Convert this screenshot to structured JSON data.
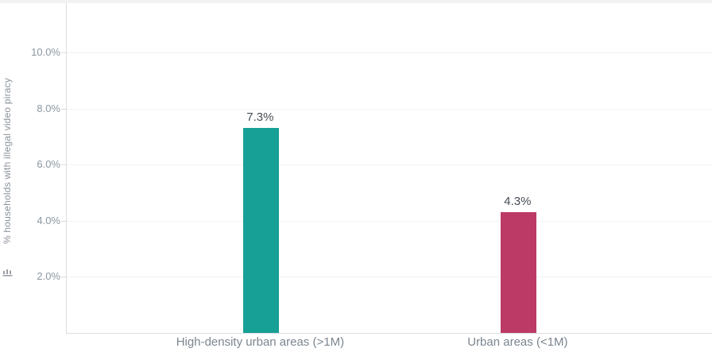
{
  "chart_data": {
    "type": "bar",
    "title": "",
    "categories": [
      "High-density urban areas (>1M)",
      "Urban areas (<1M)"
    ],
    "values": [
      7.3,
      4.3
    ],
    "value_labels": [
      "7.3%",
      "4.3%"
    ],
    "bar_colors": [
      "#17a095",
      "#bc3a66"
    ],
    "ylabel": "% households with illegal video piracy",
    "yticks": [
      {
        "value": 2,
        "label": "2.0%"
      },
      {
        "value": 4,
        "label": "4.0%"
      },
      {
        "value": 6,
        "label": "6.0%"
      },
      {
        "value": 8,
        "label": "8.0%"
      },
      {
        "value": 10,
        "label": "10.0%"
      }
    ],
    "ylim": [
      0,
      11.7
    ],
    "grid": true,
    "legend": "none",
    "axis_icon": "mini-bar-chart-icon"
  }
}
